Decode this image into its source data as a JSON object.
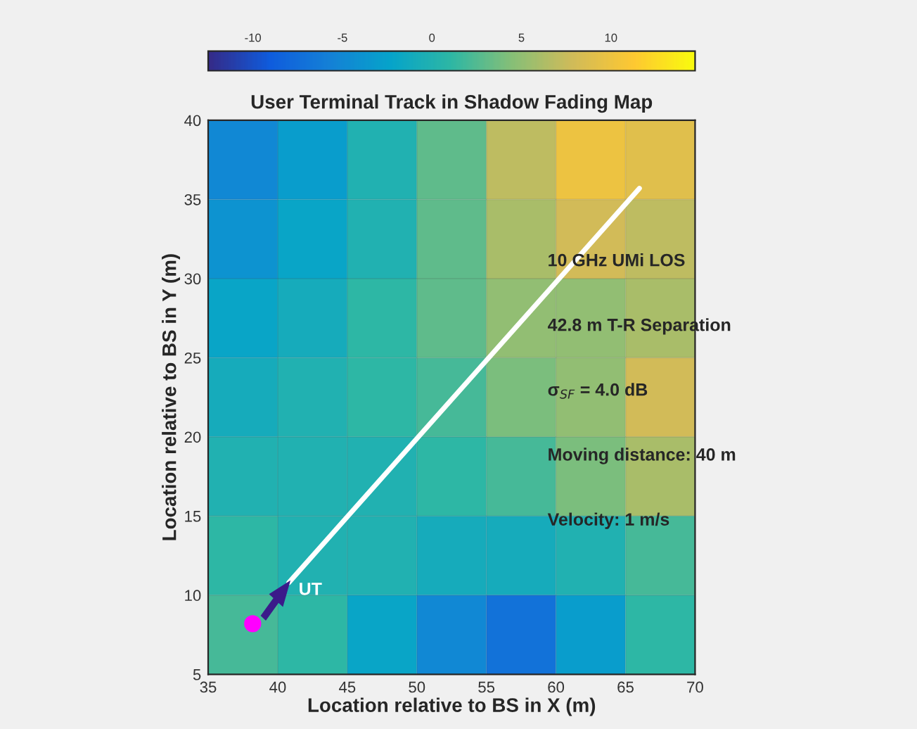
{
  "chart_data": {
    "type": "heatmap",
    "title": "User Terminal Track in Shadow Fading Map",
    "xlabel": "Location relative to BS in X (m)",
    "ylabel": "Location relative to BS in Y (m)",
    "x": [
      37.5,
      42.5,
      47.5,
      52.5,
      57.5,
      62.5,
      67.5
    ],
    "y": [
      37.5,
      32.5,
      27.5,
      22.5,
      17.5,
      12.5,
      7.5
    ],
    "cells": [
      [
        -5,
        -3,
        0,
        3,
        7,
        10,
        9
      ],
      [
        -4,
        -2,
        0,
        3,
        6,
        8,
        7
      ],
      [
        -2,
        -1,
        1,
        3,
        5,
        5,
        6
      ],
      [
        -1,
        0,
        1,
        2,
        4,
        5,
        8
      ],
      [
        0,
        0,
        0,
        1,
        2,
        4,
        6
      ],
      [
        1,
        0,
        0,
        -1,
        -1,
        0,
        2
      ],
      [
        2,
        1,
        -2,
        -5,
        -7,
        -3,
        1
      ]
    ],
    "clim": [
      -12.5,
      14.7
    ],
    "cticks": [
      -10,
      -5,
      0,
      5,
      10
    ],
    "xlim": [
      35,
      70
    ],
    "ylim": [
      5,
      40
    ],
    "xticks": [
      35,
      40,
      45,
      50,
      55,
      60,
      65,
      70
    ],
    "yticks": [
      5,
      10,
      15,
      20,
      25,
      30,
      35,
      40
    ],
    "grid": true,
    "series": [
      {
        "type": "line",
        "color": "#ffffff",
        "x": [
          40.8,
          66.0
        ],
        "values": [
          10.8,
          35.7
        ]
      },
      {
        "type": "scatter",
        "color": "#ff00ff",
        "x": [
          38.2
        ],
        "values": [
          8.2
        ]
      }
    ],
    "annotations": [
      {
        "text": "UT",
        "x": 40.8,
        "y": 10.8
      },
      "10 GHz UMi LOS",
      "42.8 m T-R Separation",
      "σ$_{SF}$ = 4.0 dB",
      "Moving distance: 40 m",
      "Velocity: 1 m/s"
    ]
  }
}
